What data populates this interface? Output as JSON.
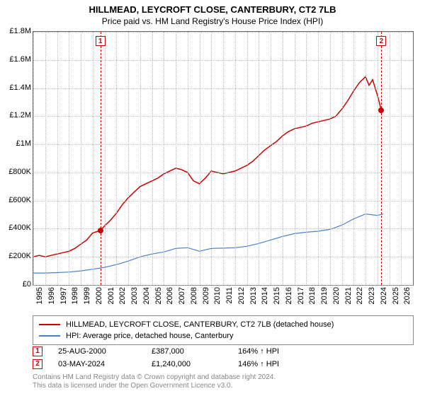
{
  "title": "HILLMEAD, LEYCROFT CLOSE, CANTERBURY, CT2 7LB",
  "subtitle": "Price paid vs. HM Land Registry's House Price Index (HPI)",
  "chart": {
    "type": "line",
    "background_color": "#ffffff",
    "grid_color": "#bbbbbb",
    "border_color": "#666666",
    "x_range": [
      1995,
      2027
    ],
    "y_range": [
      0,
      1800000
    ],
    "y_ticks": [
      0,
      200000,
      400000,
      600000,
      800000,
      1000000,
      1200000,
      1400000,
      1600000,
      1800000
    ],
    "y_tick_labels": [
      "£0",
      "£200K",
      "£400K",
      "£600K",
      "£800K",
      "£1M",
      "£1.2M",
      "£1.4M",
      "£1.6M",
      "£1.8M"
    ],
    "x_ticks": [
      1995,
      1996,
      1997,
      1998,
      1999,
      2000,
      2001,
      2002,
      2003,
      2004,
      2005,
      2006,
      2007,
      2008,
      2009,
      2010,
      2011,
      2012,
      2013,
      2014,
      2015,
      2016,
      2017,
      2018,
      2019,
      2020,
      2021,
      2022,
      2023,
      2024,
      2025,
      2026
    ],
    "series": [
      {
        "name": "HILLMEAD, LEYCROFT CLOSE, CANTERBURY, CT2 7LB (detached house)",
        "color": "#cc0000",
        "width": 1.5,
        "points": [
          [
            1995,
            200000
          ],
          [
            1995.5,
            210000
          ],
          [
            1996,
            200000
          ],
          [
            1996.5,
            210000
          ],
          [
            1997,
            220000
          ],
          [
            1997.5,
            230000
          ],
          [
            1998,
            240000
          ],
          [
            1998.5,
            260000
          ],
          [
            1999,
            290000
          ],
          [
            1999.5,
            320000
          ],
          [
            2000,
            370000
          ],
          [
            2000.65,
            387000
          ],
          [
            2001,
            420000
          ],
          [
            2001.5,
            460000
          ],
          [
            2002,
            510000
          ],
          [
            2002.5,
            570000
          ],
          [
            2003,
            620000
          ],
          [
            2003.5,
            660000
          ],
          [
            2004,
            700000
          ],
          [
            2004.5,
            720000
          ],
          [
            2005,
            740000
          ],
          [
            2005.5,
            760000
          ],
          [
            2006,
            790000
          ],
          [
            2006.5,
            810000
          ],
          [
            2007,
            830000
          ],
          [
            2007.5,
            820000
          ],
          [
            2008,
            800000
          ],
          [
            2008.5,
            740000
          ],
          [
            2009,
            720000
          ],
          [
            2009.5,
            760000
          ],
          [
            2010,
            810000
          ],
          [
            2010.5,
            800000
          ],
          [
            2011,
            790000
          ],
          [
            2011.5,
            800000
          ],
          [
            2012,
            810000
          ],
          [
            2012.5,
            830000
          ],
          [
            2013,
            850000
          ],
          [
            2013.5,
            880000
          ],
          [
            2014,
            920000
          ],
          [
            2014.5,
            960000
          ],
          [
            2015,
            990000
          ],
          [
            2015.5,
            1020000
          ],
          [
            2016,
            1060000
          ],
          [
            2016.5,
            1090000
          ],
          [
            2017,
            1110000
          ],
          [
            2017.5,
            1120000
          ],
          [
            2018,
            1130000
          ],
          [
            2018.5,
            1150000
          ],
          [
            2019,
            1160000
          ],
          [
            2019.5,
            1170000
          ],
          [
            2020,
            1180000
          ],
          [
            2020.5,
            1200000
          ],
          [
            2021,
            1250000
          ],
          [
            2021.5,
            1310000
          ],
          [
            2022,
            1380000
          ],
          [
            2022.5,
            1440000
          ],
          [
            2023,
            1480000
          ],
          [
            2023.3,
            1420000
          ],
          [
            2023.6,
            1460000
          ],
          [
            2024,
            1350000
          ],
          [
            2024.34,
            1240000
          ]
        ]
      },
      {
        "name": "HPI: Average price, detached house, Canterbury",
        "color": "#4a7fd0",
        "width": 1.2,
        "points": [
          [
            1995,
            85000
          ],
          [
            1996,
            85000
          ],
          [
            1997,
            88000
          ],
          [
            1998,
            92000
          ],
          [
            1999,
            100000
          ],
          [
            2000,
            112000
          ],
          [
            2001,
            125000
          ],
          [
            2002,
            145000
          ],
          [
            2003,
            170000
          ],
          [
            2004,
            200000
          ],
          [
            2005,
            220000
          ],
          [
            2006,
            235000
          ],
          [
            2007,
            260000
          ],
          [
            2008,
            265000
          ],
          [
            2009,
            240000
          ],
          [
            2010,
            260000
          ],
          [
            2011,
            262000
          ],
          [
            2012,
            265000
          ],
          [
            2013,
            275000
          ],
          [
            2014,
            295000
          ],
          [
            2015,
            320000
          ],
          [
            2016,
            345000
          ],
          [
            2017,
            365000
          ],
          [
            2018,
            375000
          ],
          [
            2019,
            382000
          ],
          [
            2020,
            395000
          ],
          [
            2021,
            425000
          ],
          [
            2022,
            470000
          ],
          [
            2023,
            505000
          ],
          [
            2024,
            495000
          ],
          [
            2024.5,
            505000
          ]
        ]
      }
    ],
    "event_markers": [
      {
        "n": "1",
        "x": 2000.65,
        "y": 387000,
        "date": "25-AUG-2000",
        "price": "£387,000",
        "delta": "164% ↑ HPI"
      },
      {
        "n": "2",
        "x": 2024.34,
        "y": 1240000,
        "date": "03-MAY-2024",
        "price": "£1,240,000",
        "delta": "146% ↑ HPI"
      }
    ]
  },
  "footer_line1": "Contains HM Land Registry data © Crown copyright and database right 2024.",
  "footer_line2": "This data is licensed under the Open Government Licence v3.0."
}
